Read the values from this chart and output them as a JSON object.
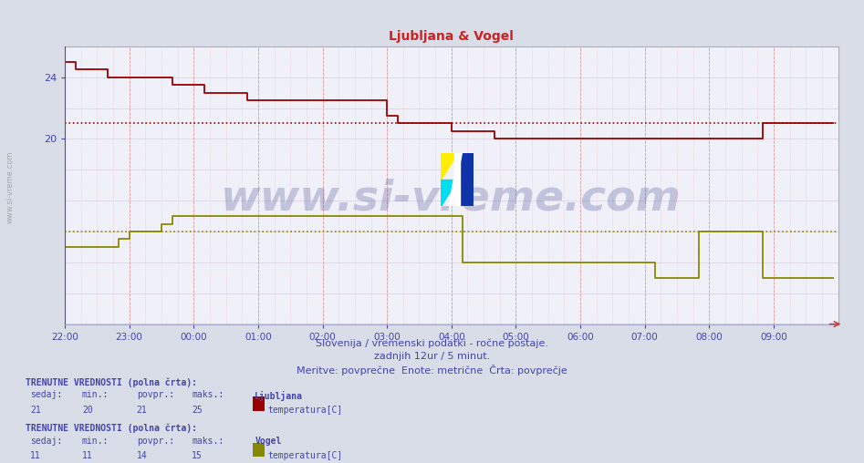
{
  "title": "Ljubljana & Vogel",
  "bg_color": "#d8dde8",
  "plot_bg_color": "#f0f0f8",
  "title_color": "#cc2222",
  "xlim": [
    0,
    144
  ],
  "ylim": [
    8,
    26
  ],
  "yticks": [
    20,
    24
  ],
  "xtick_labels": [
    "22:00",
    "23:00",
    "00:00",
    "01:00",
    "02:00",
    "03:00",
    "04:00",
    "05:00",
    "06:00",
    "07:00",
    "08:00",
    "09:00"
  ],
  "xtick_positions": [
    0,
    12,
    24,
    36,
    48,
    60,
    72,
    84,
    96,
    108,
    120,
    132
  ],
  "lj_color": "#990000",
  "vogel_color": "#888800",
  "lj_avg": 21.0,
  "vogel_avg": 14.0,
  "lj_data_x": [
    0,
    2,
    4,
    6,
    8,
    10,
    12,
    14,
    16,
    18,
    20,
    22,
    24,
    26,
    28,
    30,
    32,
    34,
    36,
    38,
    40,
    42,
    44,
    46,
    48,
    50,
    52,
    54,
    56,
    58,
    60,
    62,
    64,
    66,
    68,
    70,
    72,
    74,
    76,
    78,
    80,
    82,
    84,
    86,
    88,
    90,
    92,
    94,
    96,
    98,
    100,
    102,
    104,
    106,
    108,
    110,
    112,
    114,
    116,
    118,
    120,
    122,
    124,
    126,
    128,
    130,
    132,
    134,
    136,
    138,
    140,
    142,
    143
  ],
  "lj_data_y": [
    25.0,
    24.5,
    24.5,
    24.5,
    24.0,
    24.0,
    24.0,
    24.0,
    24.0,
    24.0,
    23.5,
    23.5,
    23.5,
    23.0,
    23.0,
    23.0,
    23.0,
    22.5,
    22.5,
    22.5,
    22.5,
    22.5,
    22.5,
    22.5,
    22.5,
    22.5,
    22.5,
    22.5,
    22.5,
    22.5,
    21.5,
    21.0,
    21.0,
    21.0,
    21.0,
    21.0,
    20.5,
    20.5,
    20.5,
    20.5,
    20.0,
    20.0,
    20.0,
    20.0,
    20.0,
    20.0,
    20.0,
    20.0,
    20.0,
    20.0,
    20.0,
    20.0,
    20.0,
    20.0,
    20.0,
    20.0,
    20.0,
    20.0,
    20.0,
    20.0,
    20.0,
    20.0,
    20.0,
    20.0,
    20.0,
    21.0,
    21.0,
    21.0,
    21.0,
    21.0,
    21.0,
    21.0,
    21.0
  ],
  "vogel_data_x": [
    0,
    2,
    4,
    6,
    8,
    10,
    12,
    14,
    16,
    18,
    20,
    22,
    24,
    26,
    28,
    30,
    32,
    34,
    36,
    38,
    40,
    42,
    44,
    46,
    48,
    50,
    52,
    54,
    56,
    58,
    60,
    62,
    64,
    66,
    68,
    70,
    72,
    74,
    76,
    78,
    80,
    82,
    84,
    86,
    88,
    90,
    92,
    94,
    96,
    98,
    100,
    102,
    104,
    106,
    108,
    110,
    112,
    114,
    116,
    118,
    120,
    122,
    124,
    126,
    128,
    130,
    132,
    134,
    136,
    138,
    140,
    142,
    143
  ],
  "vogel_data_y": [
    13.0,
    13.0,
    13.0,
    13.0,
    13.0,
    13.5,
    14.0,
    14.0,
    14.0,
    14.5,
    15.0,
    15.0,
    15.0,
    15.0,
    15.0,
    15.0,
    15.0,
    15.0,
    15.0,
    15.0,
    15.0,
    15.0,
    15.0,
    15.0,
    15.0,
    15.0,
    15.0,
    15.0,
    15.0,
    15.0,
    15.0,
    15.0,
    15.0,
    15.0,
    15.0,
    15.0,
    15.0,
    12.0,
    12.0,
    12.0,
    12.0,
    12.0,
    12.0,
    12.0,
    12.0,
    12.0,
    12.0,
    12.0,
    12.0,
    12.0,
    12.0,
    12.0,
    12.0,
    12.0,
    12.0,
    11.0,
    11.0,
    11.0,
    11.0,
    14.0,
    14.0,
    14.0,
    14.0,
    14.0,
    14.0,
    11.0,
    11.0,
    11.0,
    11.0,
    11.0,
    11.0,
    11.0,
    11.0
  ],
  "subtitle1": "Slovenija / vremenski podatki - ročne postaje.",
  "subtitle2": "zadnjih 12ur / 5 minut.",
  "subtitle3": "Meritve: povprečne  Enote: metrične  Črta: povprečje",
  "text_color": "#4444aa",
  "watermark": "www.si-vreme.com",
  "info_label": "TRENUTNE VREDNOSTI (polna črta):",
  "info_val_sedaj1": "21",
  "info_val_min1": "20",
  "info_val_povpr1": "21",
  "info_val_maks1": "25",
  "info_station1": "Ljubljana",
  "info_temp1": "temperatura[C]",
  "info_val_sedaj2": "11",
  "info_val_min2": "11",
  "info_val_povpr2": "14",
  "info_val_maks2": "15",
  "info_station2": "Vogel",
  "info_temp2": "temperatura[C]",
  "left_label": "www.si-vreme.com"
}
